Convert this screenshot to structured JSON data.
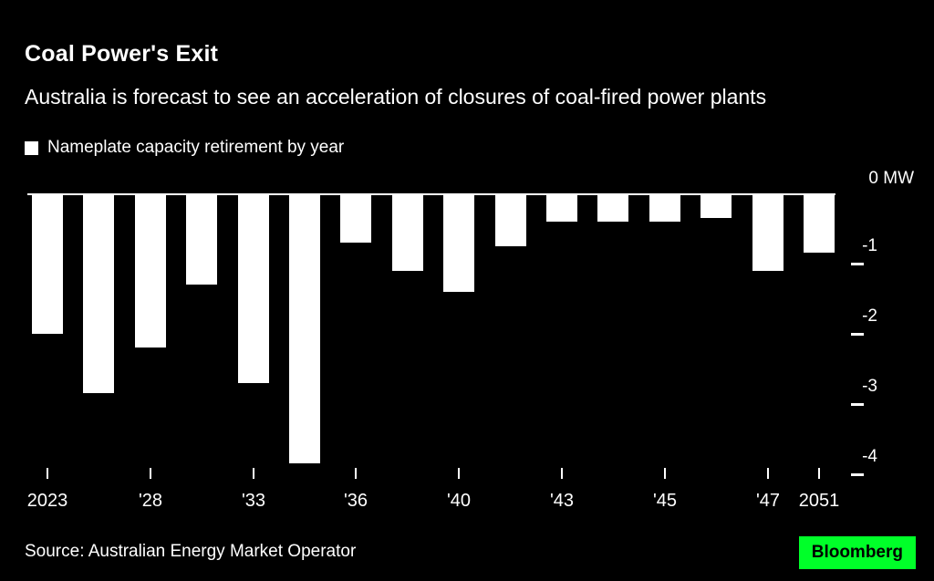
{
  "header": {
    "title": "Coal Power's Exit",
    "subtitle": "Australia is forecast to see an acceleration of closures of coal-fired power plants"
  },
  "legend": {
    "label": "Nameplate capacity retirement by year",
    "swatch_color": "#ffffff"
  },
  "chart_data": {
    "type": "bar",
    "title": "Nameplate capacity retirement by year",
    "ylabel": "MW",
    "zero_tick_label": "0 MW",
    "ylim": [
      -4.3,
      0
    ],
    "yticks": [
      -1,
      -2,
      -3,
      -4
    ],
    "ytick_labels": [
      "-1",
      "-2",
      "-3",
      "-4"
    ],
    "grid": false,
    "legend_position": "top-left",
    "bar_color": "#ffffff",
    "background_color": "#000000",
    "bars": [
      {
        "x_label": "2023",
        "value": -2.0
      },
      {
        "x_label": "",
        "value": -2.85
      },
      {
        "x_label": "'28",
        "value": -2.2
      },
      {
        "x_label": "",
        "value": -1.3
      },
      {
        "x_label": "'33",
        "value": -2.7
      },
      {
        "x_label": "",
        "value": -3.85
      },
      {
        "x_label": "'36",
        "value": -0.7
      },
      {
        "x_label": "",
        "value": -1.1
      },
      {
        "x_label": "'40",
        "value": -1.4
      },
      {
        "x_label": "",
        "value": -0.75
      },
      {
        "x_label": "'43",
        "value": -0.4
      },
      {
        "x_label": "",
        "value": -0.4
      },
      {
        "x_label": "'45",
        "value": -0.4
      },
      {
        "x_label": "",
        "value": -0.35
      },
      {
        "x_label": "'47",
        "value": -1.1
      },
      {
        "x_label": "2051",
        "value": -0.85
      }
    ]
  },
  "footer": {
    "source": "Source: Australian Energy Market Operator",
    "brand": "Bloomberg",
    "brand_color": "#00ff29"
  }
}
